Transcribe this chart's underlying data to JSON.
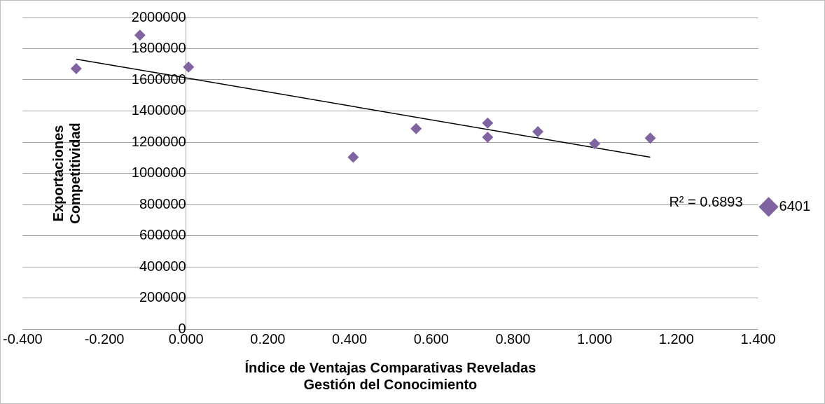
{
  "chart_data": {
    "type": "scatter",
    "xlabel": "Índice de Ventajas Comparativas Reveladas\nGestión del Conocimiento",
    "ylabel": "Exportaciones\nCompetitividad",
    "series": [
      {
        "name": "6401",
        "color": "#8064a2",
        "marker": "diamond",
        "x": [
          -0.269,
          -0.113,
          0.006,
          0.409,
          0.563,
          0.738,
          0.738,
          0.861,
          1.0,
          1.136
        ],
        "values": [
          1672000,
          1887000,
          1682000,
          1103000,
          1287000,
          1323000,
          1231000,
          1267000,
          1190000,
          1226000
        ]
      },
      {
        "type": "line",
        "color": "#000000",
        "marker": "none",
        "x": [
          -0.269,
          1.136
        ],
        "values": [
          1733000,
          1103000
        ]
      }
    ],
    "annotations": [
      "R² = 0.6893"
    ],
    "xlim": [
      -0.4,
      1.4
    ],
    "xticks": [
      {
        "value": -0.4,
        "label": "-0.400"
      },
      {
        "value": -0.2,
        "label": "-0.200"
      },
      {
        "value": 0,
        "label": "0.000"
      },
      {
        "value": 0.2,
        "label": "0.200"
      },
      {
        "value": 0.4,
        "label": "0.400"
      },
      {
        "value": 0.6,
        "label": "0.600"
      },
      {
        "value": 0.8,
        "label": "0.800"
      },
      {
        "value": 1.0,
        "label": "1.000"
      },
      {
        "value": 1.2,
        "label": "1.200"
      },
      {
        "value": 1.4,
        "label": "1.400"
      }
    ],
    "ylim": [
      0,
      2000000
    ],
    "yticks": [
      0,
      200000,
      400000,
      600000,
      800000,
      1000000,
      1200000,
      1400000,
      1600000,
      1800000,
      2000000
    ],
    "grid": "y",
    "legend": "right"
  }
}
